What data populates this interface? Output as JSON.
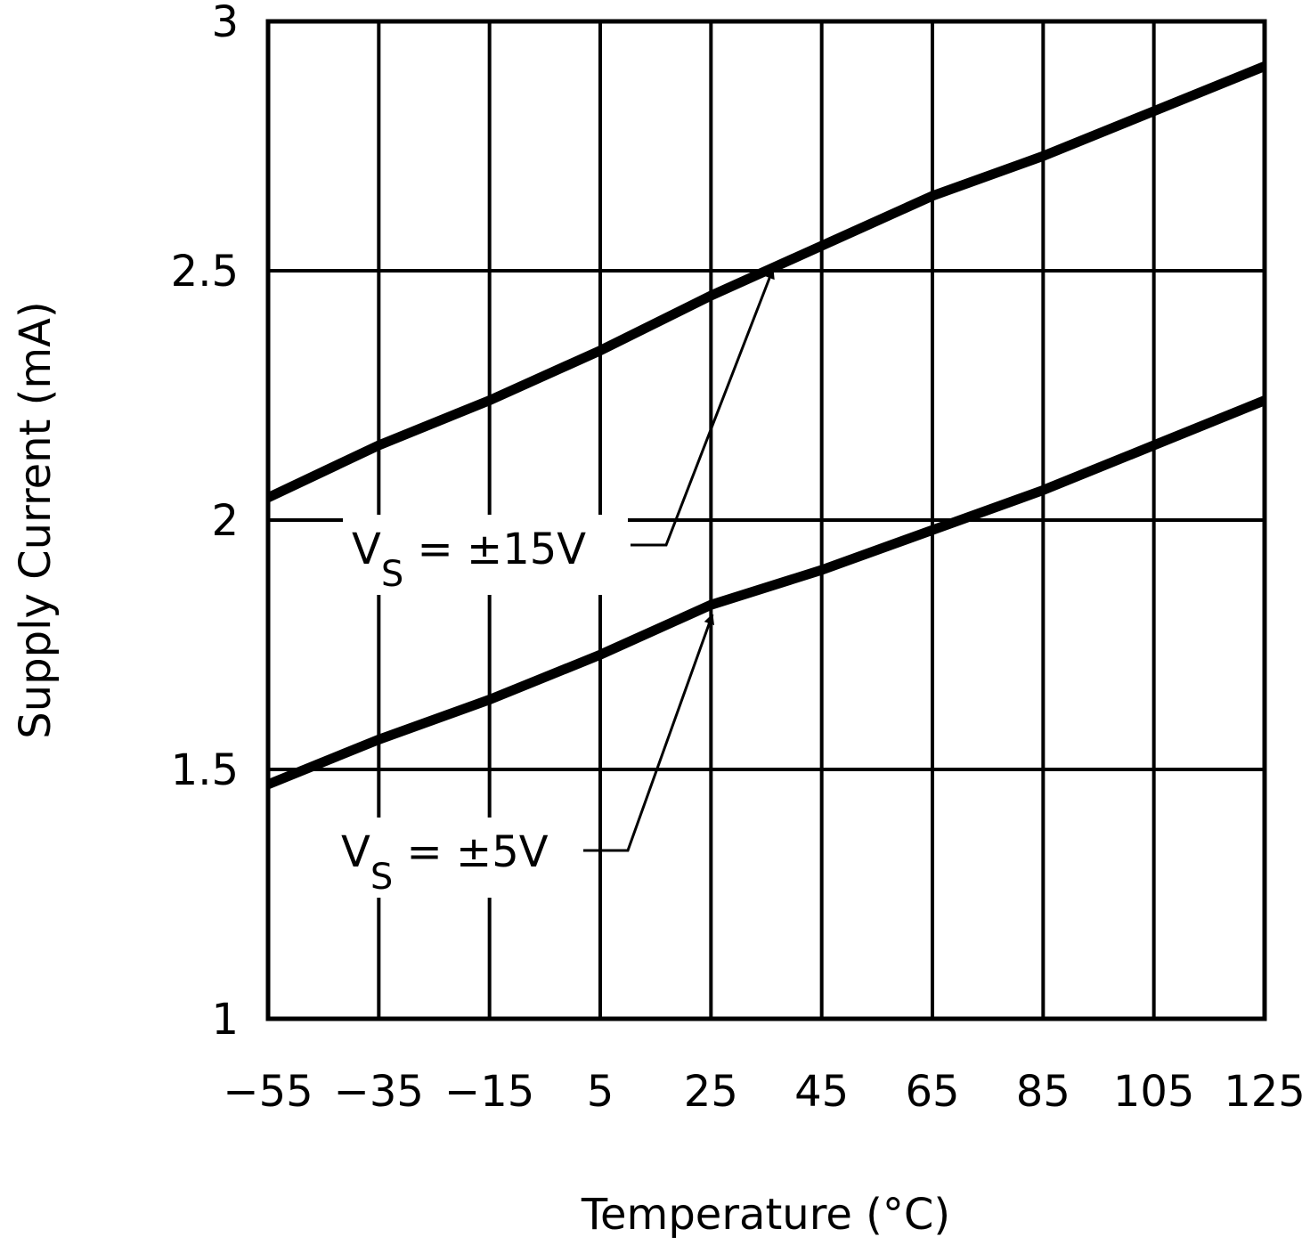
{
  "chart_data": {
    "type": "line",
    "x_label": "Temperature (°C)",
    "y_label": "Supply Current (mA)",
    "x": [
      -55,
      -35,
      -15,
      5,
      25,
      45,
      65,
      85,
      105,
      125
    ],
    "series": [
      {
        "name": "VS = ±15V",
        "color": "#000000",
        "values": [
          2.045,
          2.15,
          2.24,
          2.34,
          2.45,
          2.55,
          2.65,
          2.73,
          2.82,
          2.91
        ]
      },
      {
        "name": "VS = ±5V",
        "color": "#000000",
        "values": [
          1.47,
          1.56,
          1.64,
          1.73,
          1.83,
          1.9,
          1.98,
          2.06,
          2.15,
          2.24
        ]
      }
    ],
    "annotations": [
      {
        "main": "V",
        "sub": "S",
        "rest": " = ±15V"
      },
      {
        "main": "V",
        "sub": "S",
        "rest": " = ±5V"
      }
    ],
    "xlim": [
      -55,
      125
    ],
    "xticks": [
      {
        "value": -55,
        "label": "−55"
      },
      {
        "value": -35,
        "label": "−35"
      },
      {
        "value": -15,
        "label": "−15"
      },
      5,
      25,
      45,
      65,
      85,
      105,
      125
    ],
    "ylim": [
      1,
      3
    ],
    "yticks": [
      1,
      1.5,
      2,
      2.5,
      3
    ],
    "grid": true
  }
}
